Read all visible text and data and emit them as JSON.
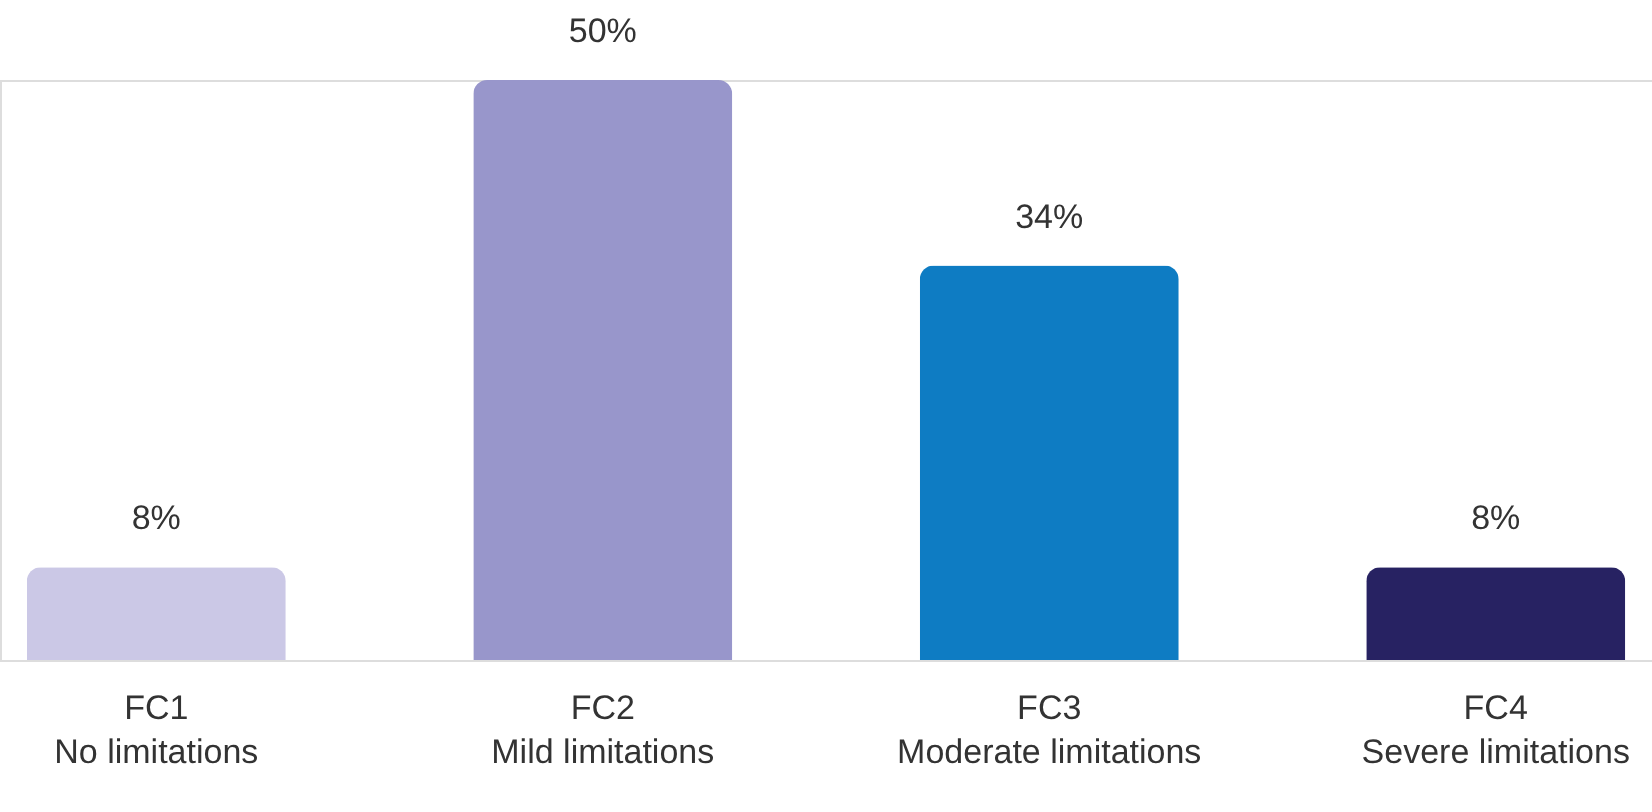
{
  "chart_data": {
    "type": "bar",
    "categories": [
      "FC1\nNo limitations",
      "FC2\nMild limitations",
      "FC3\nModerate limitations",
      "FC4\nSevere limitations"
    ],
    "values": [
      8,
      50,
      34,
      8
    ],
    "colors": [
      "#cbc8e6",
      "#9896cb",
      "#0e7cc3",
      "#272262"
    ],
    "value_labels": [
      "8%",
      "50%",
      "34%",
      "8%"
    ],
    "ylim": [
      0,
      50
    ]
  }
}
